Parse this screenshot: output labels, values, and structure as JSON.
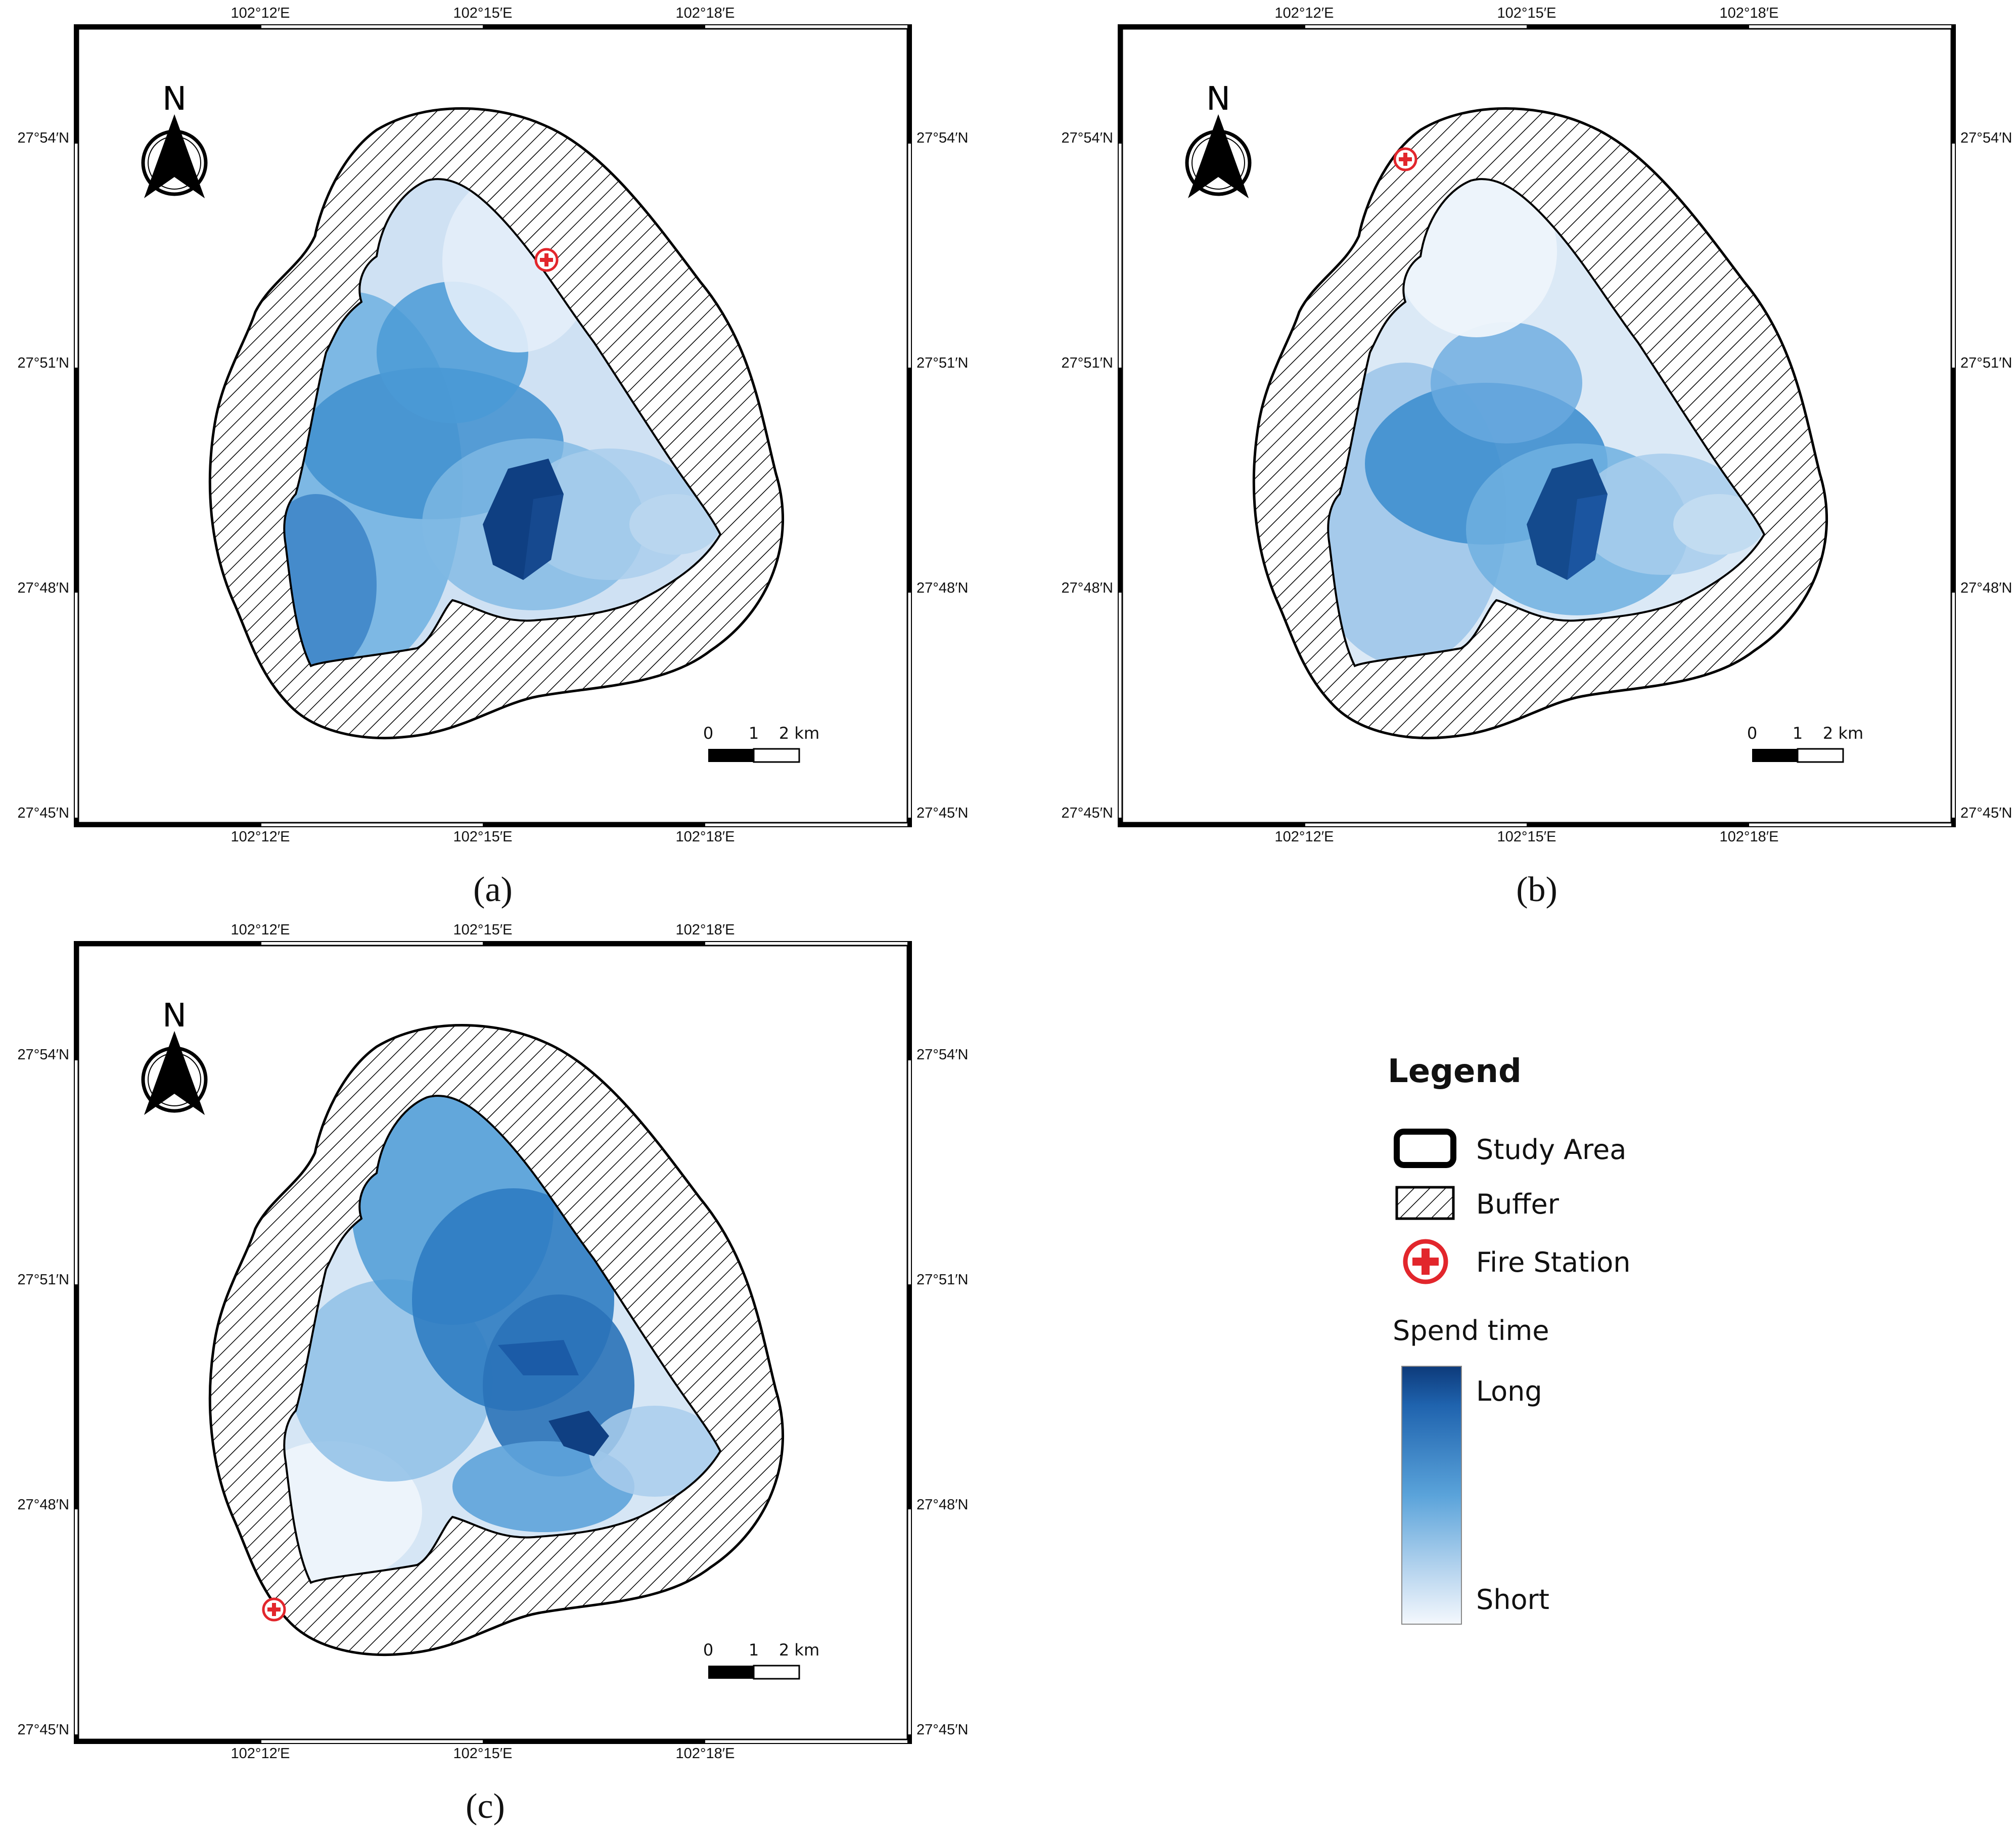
{
  "panels": [
    {
      "id": "a",
      "caption": "(a)",
      "lon_labels": [
        "102°12′E",
        "102°15′E",
        "102°18′E"
      ],
      "lat_labels": [
        "27°54′N",
        "27°51′N",
        "27°48′N",
        "27°45′N"
      ],
      "north_label": "N",
      "scale_labels": [
        "0",
        "1",
        "2 km"
      ],
      "fire_station_location": "north-east edge of buffer",
      "darkest_zone": "south-east of centre"
    },
    {
      "id": "b",
      "caption": "(b)",
      "lon_labels": [
        "102°12′E",
        "102°15′E",
        "102°18′E"
      ],
      "lat_labels": [
        "27°54′N",
        "27°51′N",
        "27°48′N",
        "27°45′N"
      ],
      "north_label": "N",
      "scale_labels": [
        "0",
        "1",
        "2 km"
      ],
      "fire_station_location": "north edge of buffer",
      "darkest_zone": "south-east of centre"
    },
    {
      "id": "c",
      "caption": "(c)",
      "lon_labels": [
        "102°12′E",
        "102°15′E",
        "102°18′E"
      ],
      "lat_labels": [
        "27°54′N",
        "27°51′N",
        "27°48′N",
        "27°45′N"
      ],
      "north_label": "N",
      "scale_labels": [
        "0",
        "1",
        "2 km"
      ],
      "fire_station_location": "south-west edge of buffer",
      "darkest_zone": "east"
    }
  ],
  "legend": {
    "title": "Legend",
    "items": [
      {
        "label": "Study Area",
        "symbol": "rounded-rectangle-outline-icon"
      },
      {
        "label": "Buffer",
        "symbol": "hatched-rectangle-icon"
      },
      {
        "label": "Fire Station",
        "symbol": "fire-station-icon"
      }
    ],
    "ramp_title": "Spend time",
    "ramp_high": "Long",
    "ramp_low": "Short"
  },
  "colors": {
    "long": "#0d3a7a",
    "mid": "#3f8fcf",
    "short": "#eaf2fb",
    "fire_station": "#e2262c",
    "outline": "#000000"
  }
}
